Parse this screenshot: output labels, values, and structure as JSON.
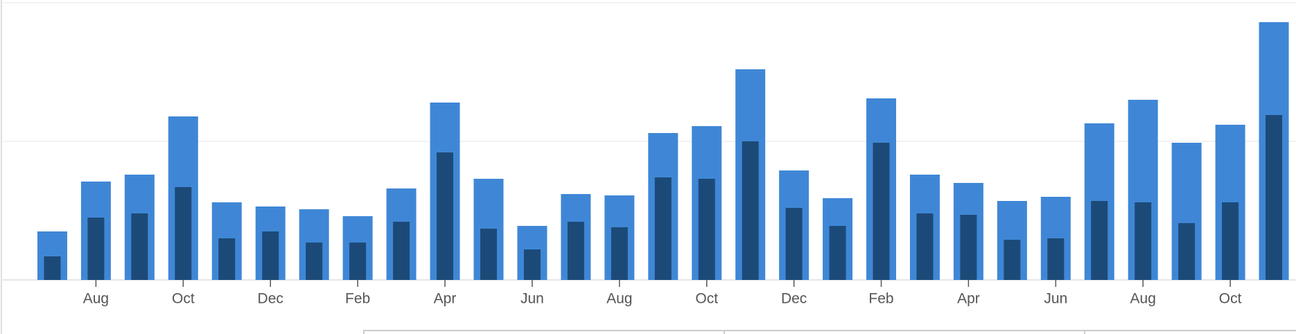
{
  "chart_data": {
    "type": "bar",
    "categories": [
      null,
      "Aug",
      null,
      "Oct",
      null,
      "Dec",
      null,
      "Feb",
      null,
      "Apr",
      null,
      "Jun",
      null,
      "Aug",
      null,
      "Oct",
      null,
      "Dec",
      null,
      "Feb",
      null,
      "Apr",
      null,
      "Jun",
      null,
      "Aug",
      null,
      "Oct",
      null
    ],
    "series": [
      {
        "color": "#3f87d6",
        "values": [
          0.35,
          0.71,
          0.76,
          1.18,
          0.56,
          0.53,
          0.51,
          0.46,
          0.66,
          1.28,
          0.73,
          0.39,
          0.62,
          0.61,
          1.06,
          1.11,
          1.52,
          0.79,
          0.59,
          1.31,
          0.76,
          0.7,
          0.57,
          0.6,
          1.13,
          1.3,
          0.99,
          1.12,
          1.86
        ]
      },
      {
        "color": "#1c4a78",
        "values": [
          0.17,
          0.45,
          0.48,
          0.67,
          0.3,
          0.35,
          0.27,
          0.27,
          0.42,
          0.92,
          0.37,
          0.22,
          0.42,
          0.38,
          0.74,
          0.73,
          1.0,
          0.52,
          0.39,
          0.99,
          0.48,
          0.47,
          0.29,
          0.3,
          0.57,
          0.56,
          0.41,
          0.56,
          1.19
        ]
      }
    ],
    "ylim": [
      0,
      2
    ],
    "yticks": [
      0,
      1,
      2
    ],
    "grid": true
  }
}
